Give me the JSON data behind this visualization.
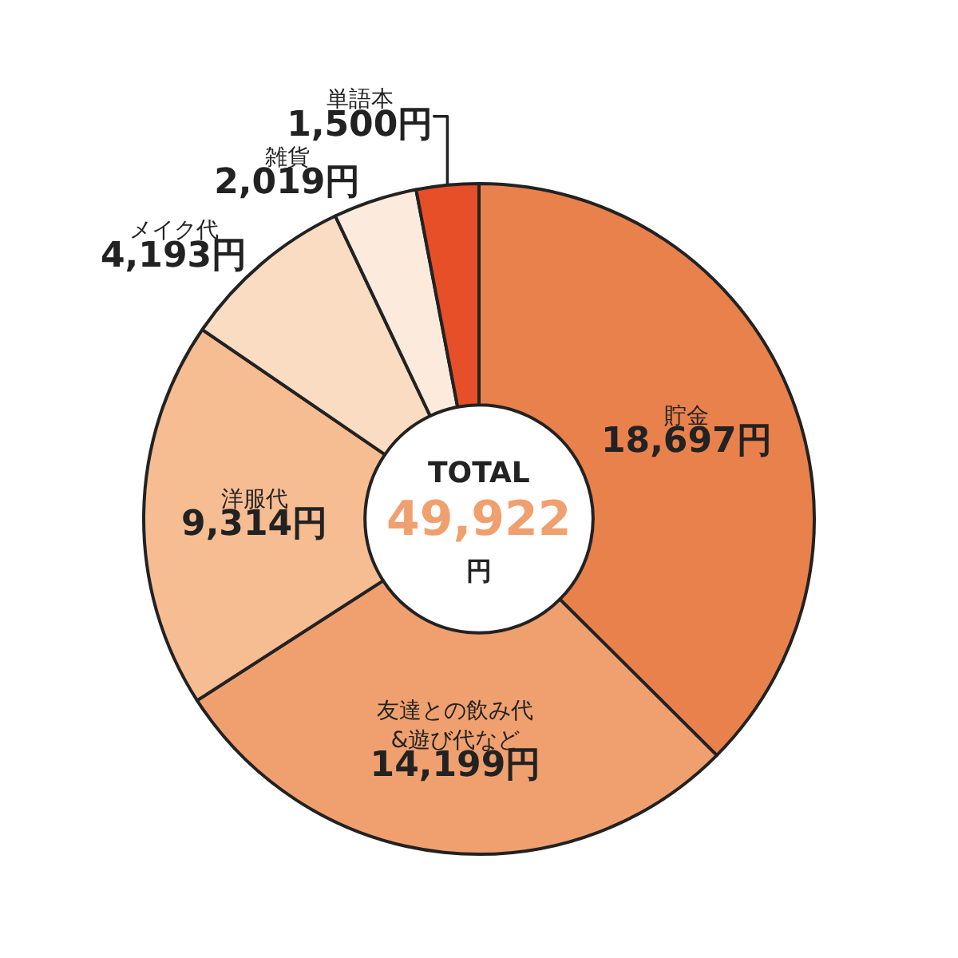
{
  "chart_data": {
    "type": "donut",
    "categories": [
      "貯金",
      "友達との飲み代\n&遊び代など",
      "洋服代",
      "メイク代",
      "雑貨",
      "単語本"
    ],
    "values": [
      18697,
      14199,
      9314,
      4193,
      2019,
      1500
    ],
    "value_labels": [
      "18,697円",
      "14,199円",
      "9,314円",
      "4,193円",
      "2,019円",
      "1,500円"
    ],
    "colors": [
      "#e9814c",
      "#f0a06f",
      "#f6bc92",
      "#f9dcc2",
      "#fcebdd",
      "#e64f27"
    ],
    "annotations": [
      "TOTAL",
      "49,922",
      "円"
    ],
    "legend": false
  }
}
